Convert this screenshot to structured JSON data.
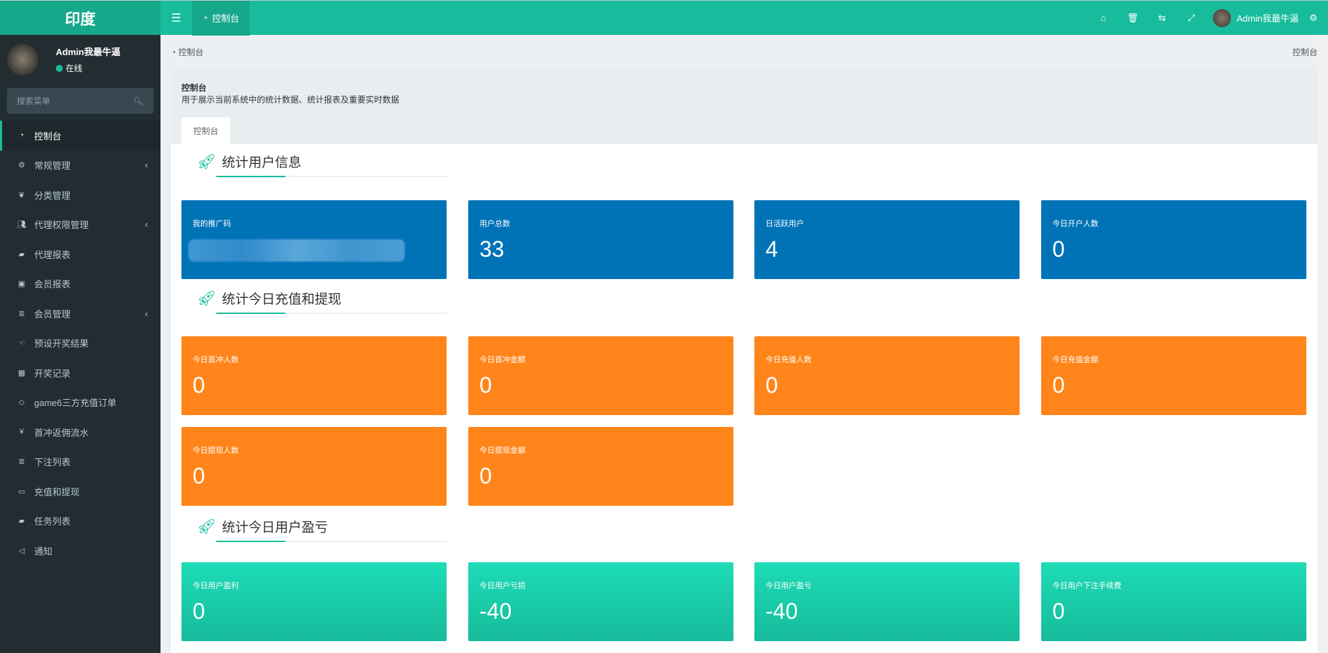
{
  "brand": "印度",
  "topbar": {
    "tab": "控制台",
    "user": "Admin我最牛逼",
    "icons": [
      "home-icon",
      "trash-icon",
      "translate-icon",
      "fullscreen-icon",
      "gears-icon"
    ]
  },
  "sidebar": {
    "user": "Admin我最牛逼",
    "status": "在线",
    "search_placeholder": "搜索菜单",
    "items": [
      {
        "label": "控制台",
        "icon": "dashboard-icon",
        "active": true
      },
      {
        "label": "常规管理",
        "icon": "cogs-icon",
        "sub": true
      },
      {
        "label": "分类管理",
        "icon": "leaf-icon"
      },
      {
        "label": "代理权限管理",
        "icon": "group-icon",
        "sub": true
      },
      {
        "label": "代理报表",
        "icon": "book-icon"
      },
      {
        "label": "会员报表",
        "icon": "address-book-icon"
      },
      {
        "label": "会员管理",
        "icon": "list-icon",
        "sub": true
      },
      {
        "label": "预设开奖结果",
        "icon": "hand-icon"
      },
      {
        "label": "开奖记录",
        "icon": "calendar-check-icon"
      },
      {
        "label": "game6三方充值订单",
        "icon": "diamond-icon"
      },
      {
        "label": "首冲返佣流水",
        "icon": "yen-icon"
      },
      {
        "label": "下注列表",
        "icon": "list-icon"
      },
      {
        "label": "充值和提现",
        "icon": "money-icon"
      },
      {
        "label": "任务列表",
        "icon": "book-icon"
      },
      {
        "label": "通知",
        "icon": "bullhorn-icon"
      }
    ]
  },
  "breadcrumb": {
    "left": "控制台",
    "right": "控制台"
  },
  "panel": {
    "title": "控制台",
    "desc": "用于展示当前系统中的统计数据、统计报表及重要实时数据",
    "tab": "控制台"
  },
  "sections": [
    {
      "title": "统计用户信息",
      "color": "#0073b7",
      "cards": [
        {
          "label": "我的推广码",
          "value": ""
        },
        {
          "label": "用户总数",
          "value": "33"
        },
        {
          "label": "日活跃用户",
          "value": "4"
        },
        {
          "label": "今日开户人数",
          "value": "0"
        }
      ]
    },
    {
      "title": "统计今日充值和提现",
      "color": "#ff851b",
      "cards": [
        {
          "label": "今日首冲人数",
          "value": "0"
        },
        {
          "label": "今日首冲金额",
          "value": "0"
        },
        {
          "label": "今日充值人数",
          "value": "0"
        },
        {
          "label": "今日充值金额",
          "value": "0"
        },
        {
          "label": "今日提现人数",
          "value": "0"
        },
        {
          "label": "今日提现金额",
          "value": "0"
        }
      ]
    },
    {
      "title": "统计今日用户盈亏",
      "color": "#18bc9c",
      "cards": [
        {
          "label": "今日用户盈利",
          "value": "0"
        },
        {
          "label": "今日用户亏损",
          "value": "-40"
        },
        {
          "label": "今日用户盈亏",
          "value": "-40"
        },
        {
          "label": "今日用户下注手续费",
          "value": "0"
        }
      ]
    }
  ]
}
